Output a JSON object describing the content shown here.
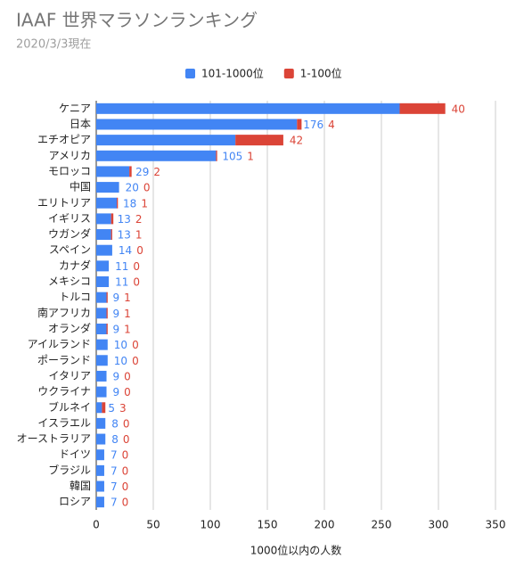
{
  "chart_data": {
    "type": "bar",
    "horizontal": true,
    "stacked": true,
    "title": "IAAF 世界マラソンランキング",
    "subtitle": "2020/3/3現在",
    "x_label": "1000位以内の人数",
    "categories": [
      "ケニア",
      "日本",
      "エチオピア",
      "アメリカ",
      "モロッコ",
      "中国",
      "エリトリア",
      "イギリス",
      "ウガンダ",
      "スペイン",
      "カナダ",
      "メキシコ",
      "トルコ",
      "南アフリカ",
      "オランダ",
      "アイルランド",
      "ポーランド",
      "イタリア",
      "ウクライナ",
      "ブルネイ",
      "イスラエル",
      "オーストラリア",
      "ドイツ",
      "ブラジル",
      "韓国",
      "ロシア"
    ],
    "series": [
      {
        "name": "101-1000位",
        "color": "#4285f4",
        "values": [
          266,
          176,
          122,
          105,
          29,
          20,
          18,
          13,
          13,
          14,
          11,
          11,
          9,
          9,
          9,
          10,
          10,
          9,
          9,
          5,
          8,
          8,
          7,
          7,
          7,
          7
        ]
      },
      {
        "name": "1-100位",
        "color": "#db4437",
        "values": [
          40,
          4,
          42,
          1,
          2,
          0,
          1,
          2,
          1,
          0,
          0,
          0,
          1,
          1,
          1,
          0,
          0,
          0,
          0,
          3,
          0,
          0,
          0,
          0,
          0,
          0
        ]
      }
    ],
    "xlim": [
      0,
      350
    ],
    "xticks": [
      0,
      50,
      100,
      150,
      200,
      250,
      300,
      350
    ],
    "grid": true,
    "legend": "top"
  }
}
